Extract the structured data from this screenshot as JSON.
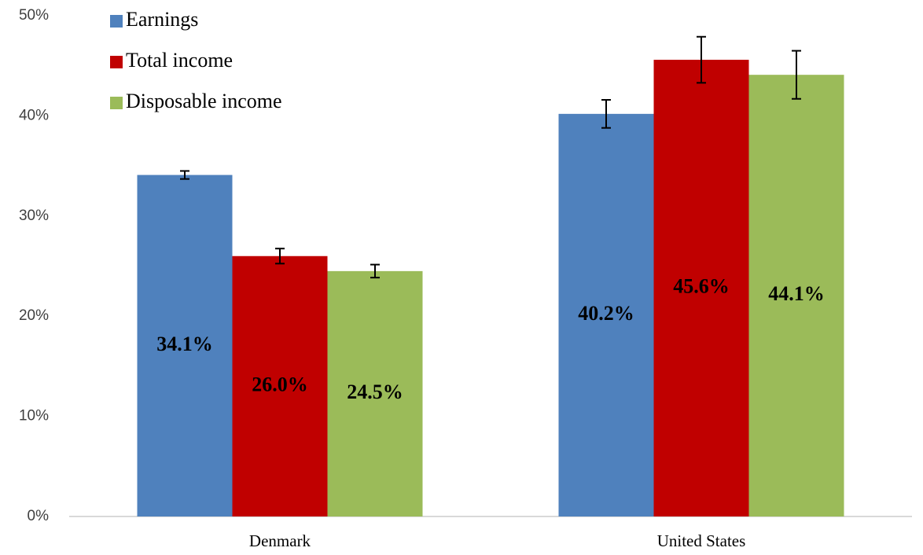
{
  "chart_data": {
    "type": "bar",
    "categories": [
      "Denmark",
      "United States"
    ],
    "series": [
      {
        "name": "Earnings",
        "color": "#4f81bd",
        "values": [
          34.1,
          40.2
        ],
        "value_labels": [
          "34.1%",
          "40.2%"
        ],
        "errors": [
          0.4,
          1.4
        ]
      },
      {
        "name": "Total income",
        "color": "#c00000",
        "values": [
          26.0,
          45.6
        ],
        "value_labels": [
          "26.0%",
          "45.6%"
        ],
        "errors": [
          0.75,
          2.3
        ]
      },
      {
        "name": "Disposable income",
        "color": "#9bbb59",
        "values": [
          24.5,
          44.1
        ],
        "value_labels": [
          "24.5%",
          "44.1%"
        ],
        "errors": [
          0.65,
          2.4
        ]
      }
    ],
    "ylim": [
      0,
      50
    ],
    "yticks": [
      {
        "value": 0,
        "label": "0%"
      },
      {
        "value": 10,
        "label": "10%"
      },
      {
        "value": 20,
        "label": "20%"
      },
      {
        "value": 30,
        "label": "30%"
      },
      {
        "value": 40,
        "label": "40%"
      },
      {
        "value": 50,
        "label": "50%"
      }
    ],
    "grid": false,
    "legend": "top-left"
  }
}
